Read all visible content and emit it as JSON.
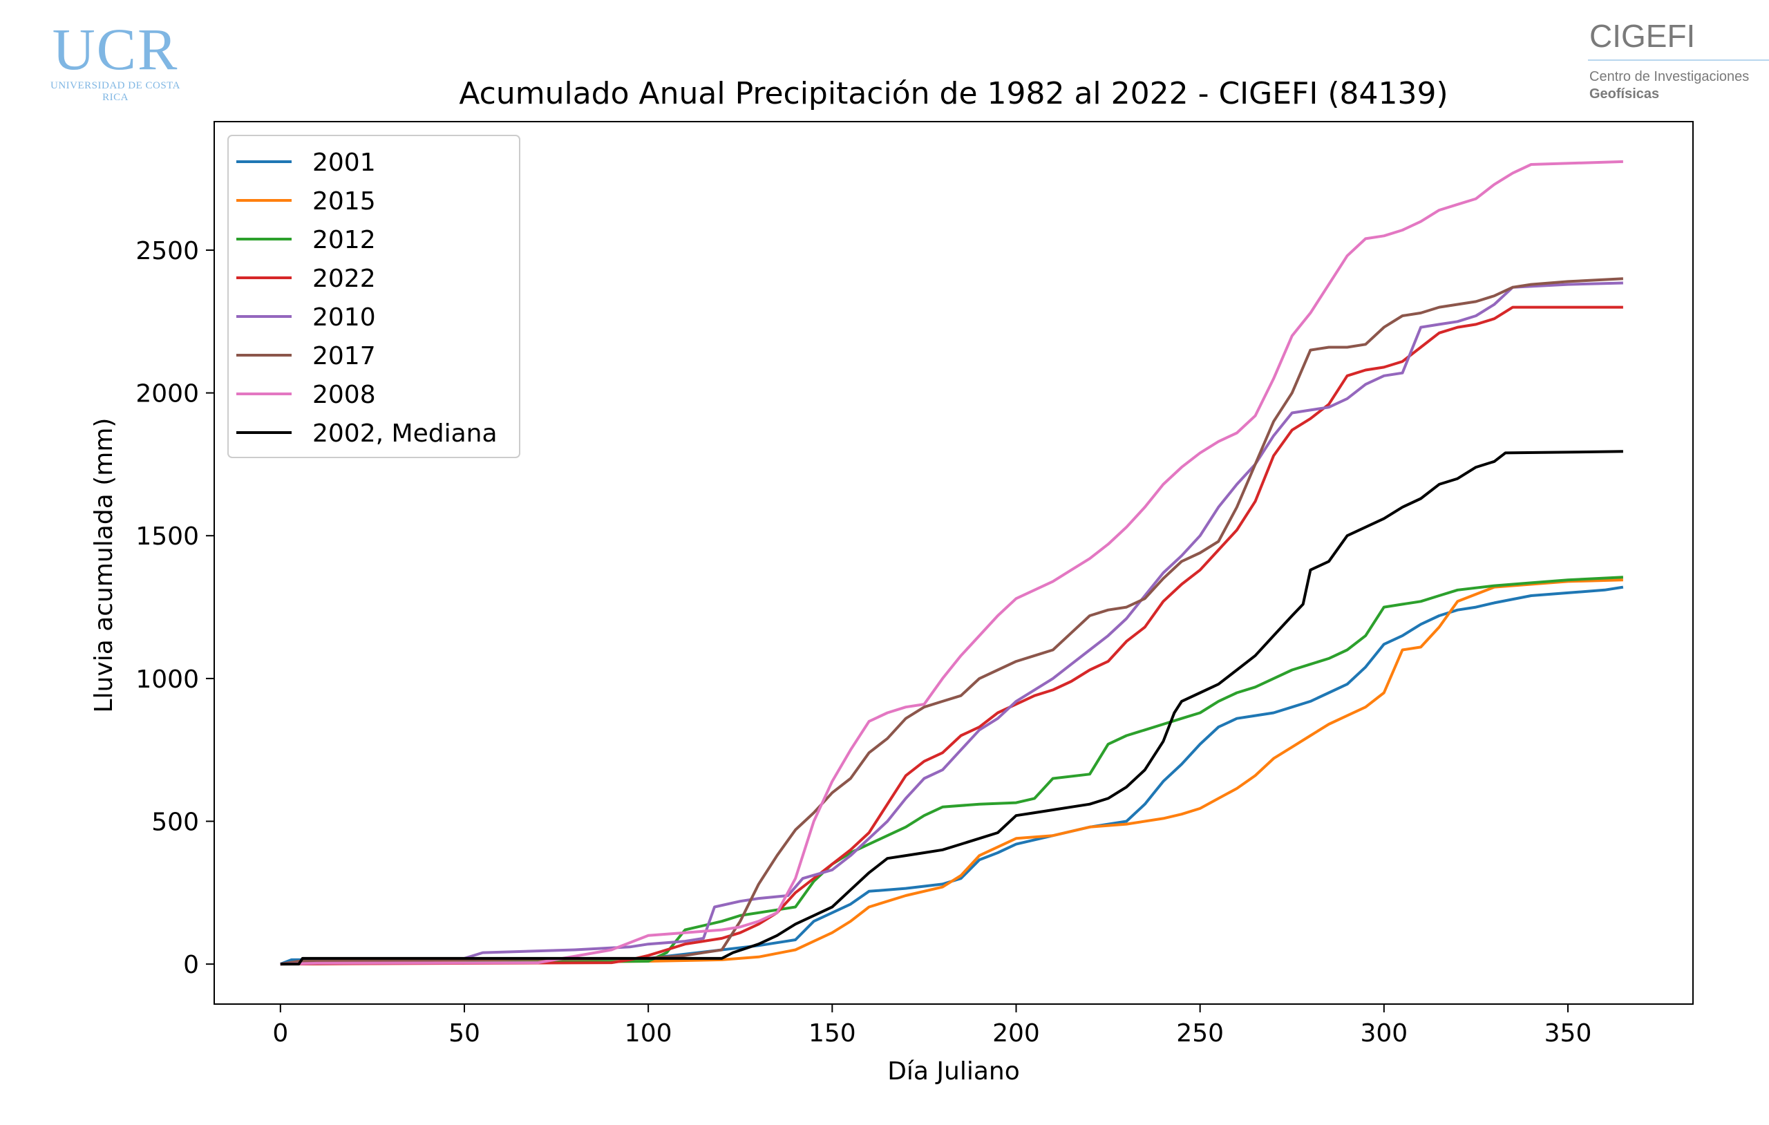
{
  "logos": {
    "ucr": {
      "text": "UCR",
      "subtitle": "UNIVERSIDAD DE COSTA RICA"
    },
    "cigefi": {
      "text": "CIGEFI",
      "line1": "Centro de Investigaciones",
      "line2": "Geofísicas"
    }
  },
  "chart_data": {
    "type": "line",
    "title": "Acumulado Anual Precipitación de 1982 al 2022 - CIGEFI (84139)",
    "xlabel": "Día Juliano",
    "ylabel": "Lluvia acumulada (mm)",
    "xlim": [
      -18,
      384
    ],
    "ylim": [
      -140,
      2950
    ],
    "xticks": [
      0,
      50,
      100,
      150,
      200,
      250,
      300,
      350
    ],
    "yticks": [
      0,
      500,
      1000,
      1500,
      2000,
      2500
    ],
    "grid": false,
    "legend": "top-left",
    "series": [
      {
        "name": "2001",
        "color": "#1f77b4",
        "x": [
          0,
          3,
          60,
          100,
          130,
          140,
          145,
          150,
          155,
          160,
          170,
          180,
          185,
          190,
          195,
          200,
          210,
          220,
          230,
          235,
          240,
          245,
          250,
          255,
          260,
          265,
          270,
          275,
          280,
          285,
          290,
          295,
          300,
          305,
          310,
          315,
          320,
          325,
          330,
          340,
          350,
          360,
          365
        ],
        "y": [
          0,
          15,
          18,
          20,
          65,
          85,
          150,
          180,
          210,
          255,
          265,
          280,
          300,
          365,
          390,
          420,
          450,
          480,
          500,
          560,
          640,
          700,
          770,
          830,
          860,
          870,
          880,
          900,
          920,
          950,
          980,
          1040,
          1120,
          1150,
          1190,
          1220,
          1240,
          1250,
          1265,
          1290,
          1300,
          1310,
          1320
        ]
      },
      {
        "name": "2015",
        "color": "#ff7f0e",
        "x": [
          0,
          10,
          80,
          100,
          120,
          130,
          140,
          145,
          150,
          155,
          160,
          170,
          180,
          185,
          190,
          195,
          200,
          210,
          220,
          230,
          240,
          245,
          250,
          255,
          260,
          265,
          270,
          275,
          280,
          285,
          290,
          295,
          300,
          305,
          310,
          315,
          320,
          330,
          340,
          350,
          365
        ],
        "y": [
          0,
          5,
          8,
          10,
          15,
          25,
          50,
          80,
          110,
          150,
          200,
          240,
          270,
          310,
          380,
          410,
          440,
          450,
          480,
          490,
          510,
          525,
          545,
          580,
          615,
          660,
          720,
          760,
          800,
          840,
          870,
          900,
          950,
          1100,
          1110,
          1180,
          1270,
          1320,
          1330,
          1340,
          1345
        ]
      },
      {
        "name": "2012",
        "color": "#2ca02c",
        "x": [
          0,
          50,
          100,
          105,
          110,
          120,
          125,
          130,
          140,
          145,
          150,
          155,
          160,
          165,
          170,
          175,
          180,
          190,
          200,
          205,
          210,
          220,
          225,
          230,
          235,
          240,
          245,
          250,
          255,
          260,
          265,
          270,
          275,
          280,
          285,
          290,
          295,
          300,
          305,
          310,
          315,
          320,
          330,
          340,
          350,
          365
        ],
        "y": [
          0,
          5,
          10,
          40,
          120,
          150,
          170,
          180,
          200,
          290,
          350,
          390,
          420,
          450,
          480,
          520,
          550,
          560,
          565,
          580,
          650,
          665,
          770,
          800,
          820,
          840,
          860,
          880,
          920,
          950,
          970,
          1000,
          1030,
          1050,
          1070,
          1100,
          1150,
          1250,
          1260,
          1270,
          1290,
          1310,
          1325,
          1335,
          1345,
          1355
        ]
      },
      {
        "name": "2022",
        "color": "#d62728",
        "x": [
          0,
          90,
          95,
          100,
          105,
          110,
          120,
          125,
          130,
          135,
          140,
          145,
          150,
          155,
          160,
          165,
          170,
          175,
          180,
          185,
          190,
          195,
          200,
          205,
          210,
          215,
          220,
          225,
          230,
          235,
          240,
          245,
          250,
          255,
          260,
          265,
          270,
          275,
          280,
          285,
          290,
          295,
          300,
          305,
          310,
          315,
          320,
          325,
          330,
          335,
          365
        ],
        "y": [
          0,
          5,
          15,
          30,
          50,
          70,
          90,
          110,
          140,
          180,
          250,
          300,
          350,
          400,
          460,
          560,
          660,
          710,
          740,
          800,
          830,
          880,
          910,
          940,
          960,
          990,
          1030,
          1060,
          1130,
          1180,
          1270,
          1330,
          1380,
          1450,
          1520,
          1620,
          1780,
          1870,
          1910,
          1960,
          2060,
          2080,
          2090,
          2110,
          2160,
          2210,
          2230,
          2240,
          2260,
          2300,
          2300
        ]
      },
      {
        "name": "2010",
        "color": "#9467bd",
        "x": [
          0,
          50,
          55,
          80,
          95,
          100,
          110,
          115,
          118,
          125,
          130,
          138,
          142,
          150,
          155,
          160,
          165,
          170,
          175,
          180,
          185,
          190,
          195,
          200,
          205,
          210,
          215,
          220,
          225,
          230,
          235,
          240,
          245,
          250,
          255,
          260,
          265,
          270,
          275,
          280,
          285,
          290,
          295,
          300,
          305,
          310,
          315,
          320,
          325,
          330,
          335,
          350,
          365
        ],
        "y": [
          0,
          20,
          40,
          50,
          60,
          70,
          80,
          90,
          200,
          220,
          230,
          240,
          300,
          330,
          380,
          440,
          500,
          580,
          650,
          680,
          750,
          820,
          860,
          920,
          960,
          1000,
          1050,
          1100,
          1150,
          1210,
          1290,
          1370,
          1430,
          1500,
          1600,
          1680,
          1750,
          1850,
          1930,
          1940,
          1950,
          1980,
          2030,
          2060,
          2070,
          2230,
          2240,
          2250,
          2270,
          2310,
          2370,
          2380,
          2385
        ]
      },
      {
        "name": "2017",
        "color": "#8c564b",
        "x": [
          0,
          5,
          100,
          110,
          120,
          125,
          130,
          135,
          140,
          145,
          150,
          155,
          160,
          165,
          170,
          175,
          180,
          185,
          190,
          195,
          200,
          205,
          210,
          215,
          220,
          225,
          230,
          235,
          240,
          245,
          250,
          255,
          260,
          265,
          270,
          275,
          280,
          285,
          290,
          295,
          300,
          305,
          310,
          315,
          320,
          325,
          330,
          335,
          340,
          350,
          365
        ],
        "y": [
          0,
          10,
          20,
          30,
          50,
          150,
          280,
          380,
          470,
          530,
          600,
          650,
          740,
          790,
          860,
          900,
          920,
          940,
          1000,
          1030,
          1060,
          1080,
          1100,
          1160,
          1220,
          1240,
          1250,
          1280,
          1350,
          1410,
          1440,
          1480,
          1600,
          1750,
          1900,
          2000,
          2150,
          2160,
          2160,
          2170,
          2230,
          2270,
          2280,
          2300,
          2310,
          2320,
          2340,
          2370,
          2380,
          2390,
          2400
        ]
      },
      {
        "name": "2008",
        "color": "#e377c2",
        "x": [
          0,
          10,
          70,
          90,
          100,
          110,
          120,
          125,
          130,
          135,
          140,
          145,
          150,
          155,
          160,
          165,
          170,
          175,
          180,
          185,
          190,
          195,
          200,
          205,
          210,
          215,
          220,
          225,
          230,
          235,
          240,
          245,
          250,
          255,
          260,
          265,
          270,
          275,
          280,
          285,
          290,
          295,
          300,
          305,
          310,
          315,
          320,
          325,
          330,
          335,
          340,
          365
        ],
        "y": [
          0,
          3,
          5,
          50,
          100,
          110,
          120,
          130,
          150,
          180,
          300,
          500,
          640,
          750,
          850,
          880,
          900,
          910,
          1000,
          1080,
          1150,
          1220,
          1280,
          1310,
          1340,
          1380,
          1420,
          1470,
          1530,
          1600,
          1680,
          1740,
          1790,
          1830,
          1860,
          1920,
          2050,
          2200,
          2280,
          2380,
          2480,
          2540,
          2550,
          2570,
          2600,
          2640,
          2660,
          2680,
          2730,
          2770,
          2800,
          2810
        ]
      },
      {
        "name": "2002, Mediana",
        "color": "#000000",
        "x": [
          0,
          5,
          6,
          120,
          123,
          130,
          135,
          140,
          145,
          150,
          155,
          160,
          165,
          170,
          175,
          180,
          185,
          190,
          195,
          200,
          205,
          210,
          215,
          220,
          225,
          230,
          235,
          240,
          243,
          245,
          250,
          255,
          260,
          265,
          270,
          275,
          278,
          280,
          285,
          290,
          295,
          300,
          305,
          310,
          315,
          320,
          325,
          330,
          333,
          365
        ],
        "y": [
          0,
          0,
          20,
          20,
          40,
          70,
          100,
          140,
          170,
          200,
          260,
          320,
          370,
          380,
          390,
          400,
          420,
          440,
          460,
          520,
          530,
          540,
          550,
          560,
          580,
          620,
          680,
          780,
          880,
          920,
          950,
          980,
          1030,
          1080,
          1150,
          1220,
          1260,
          1380,
          1410,
          1500,
          1530,
          1560,
          1600,
          1630,
          1680,
          1700,
          1740,
          1760,
          1790,
          1795
        ]
      }
    ]
  }
}
